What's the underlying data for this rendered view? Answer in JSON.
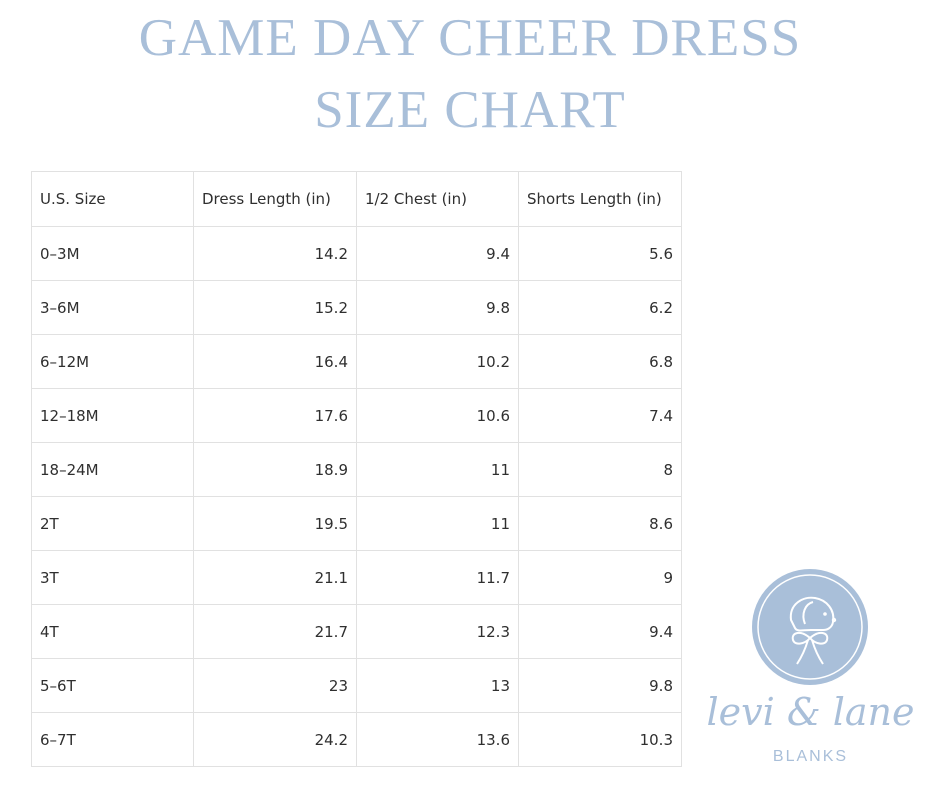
{
  "title": {
    "line1": "GAME DAY CHEER DRESS",
    "line2": "SIZE CHART"
  },
  "table": {
    "headers": [
      "U.S. Size",
      "Dress Length (in)",
      "1/2 Chest (in)",
      "Shorts Length (in)"
    ],
    "rows": [
      [
        "0–3M",
        "14.2",
        "9.4",
        "5.6"
      ],
      [
        "3–6M",
        "15.2",
        "9.8",
        "6.2"
      ],
      [
        "6–12M",
        "16.4",
        "10.2",
        "6.8"
      ],
      [
        "12–18M",
        "17.6",
        "10.6",
        "7.4"
      ],
      [
        "18–24M",
        "18.9",
        "11",
        "8"
      ],
      [
        "2T",
        "19.5",
        "11",
        "8.6"
      ],
      [
        "3T",
        "21.1",
        "11.7",
        "9"
      ],
      [
        "4T",
        "21.7",
        "12.3",
        "9.4"
      ],
      [
        "5–6T",
        "23",
        "13",
        "9.8"
      ],
      [
        "6–7T",
        "24.2",
        "13.6",
        "10.3"
      ]
    ]
  },
  "logo": {
    "brand": "levi & lane",
    "sub": "BLANKS",
    "icon": "puppy-with-bow-icon",
    "color": "#a9bfd9"
  }
}
